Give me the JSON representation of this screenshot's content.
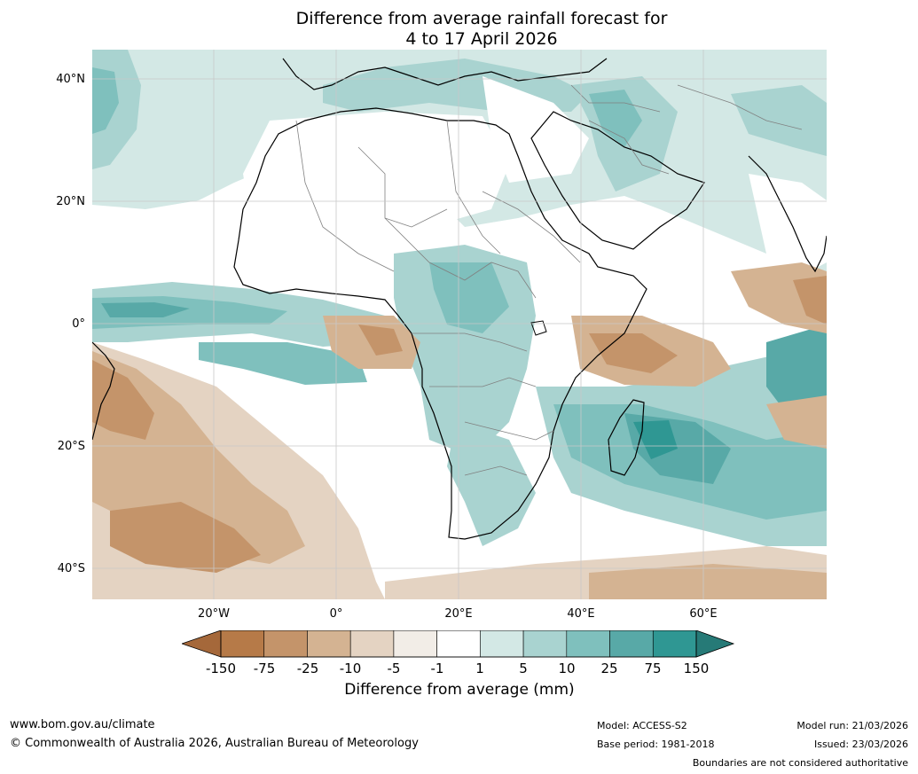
{
  "title": {
    "line1": "Difference from average rainfall forecast for",
    "line2": "4 to 17 April 2026"
  },
  "map": {
    "lat_labels": [
      "40°N",
      "20°N",
      "0°",
      "20°S",
      "40°S"
    ],
    "lon_labels": [
      "20°W",
      "0°",
      "20°E",
      "40°E",
      "60°E"
    ]
  },
  "legend": {
    "ticks": [
      "-150",
      "-75",
      "-25",
      "-10",
      "-5",
      "-1",
      "1",
      "5",
      "10",
      "25",
      "75",
      "150"
    ],
    "colors": [
      "#a5683a",
      "#b67a48",
      "#c4946a",
      "#d4b392",
      "#e4d3c2",
      "#f2ede7",
      "#ffffff",
      "#d3e8e5",
      "#a9d3d0",
      "#7fc0bd",
      "#58a9a7",
      "#2f9793",
      "#267a77"
    ],
    "label": "Difference from average (mm)"
  },
  "footer": {
    "website": "www.bom.gov.au/climate",
    "copyright": "© Commonwealth of Australia 2026, Australian Bureau of Meteorology",
    "model": "Model: ACCESS-S2",
    "base_period": "Base period: 1981-2018",
    "model_run": "Model run: 21/03/2026",
    "issued": "Issued: 23/03/2026",
    "disclaimer": "Boundaries are not considered authoritative"
  }
}
